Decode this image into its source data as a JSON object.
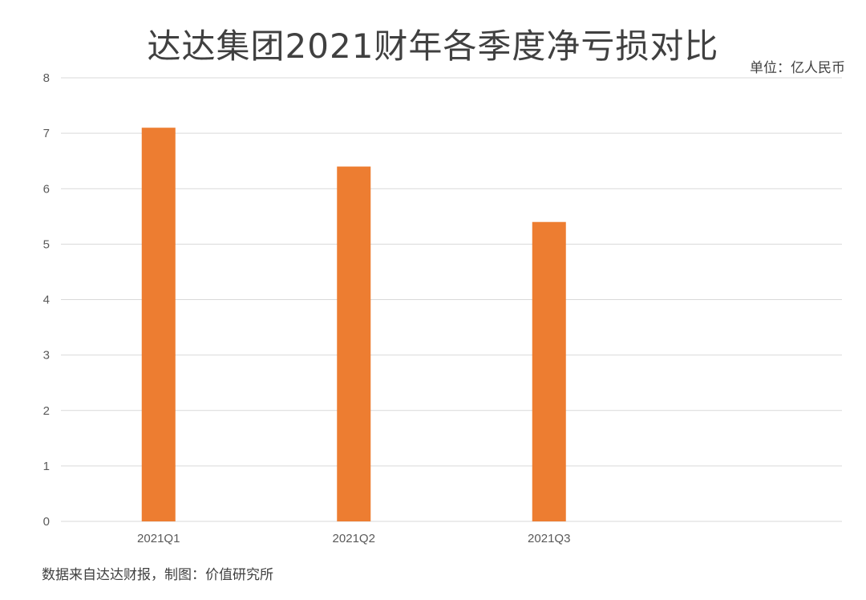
{
  "chart_data": {
    "type": "bar",
    "title": "达达集团2021财年各季度净亏损对比",
    "unit": "单位：亿人民币",
    "source": "数据来自达达财报，制图：价值研究所",
    "categories": [
      "2021Q1",
      "2021Q2",
      "2021Q3"
    ],
    "series": [
      {
        "values": [
          7.1,
          6.4,
          5.4
        ]
      }
    ],
    "ylim": [
      0,
      8
    ],
    "yticks": [
      0,
      1,
      2,
      3,
      4,
      5,
      6,
      7,
      8
    ],
    "xlabel": "",
    "ylabel": "",
    "grid": true,
    "bar_color": "#ED7D31",
    "grid_color": "#D9D9D9"
  }
}
